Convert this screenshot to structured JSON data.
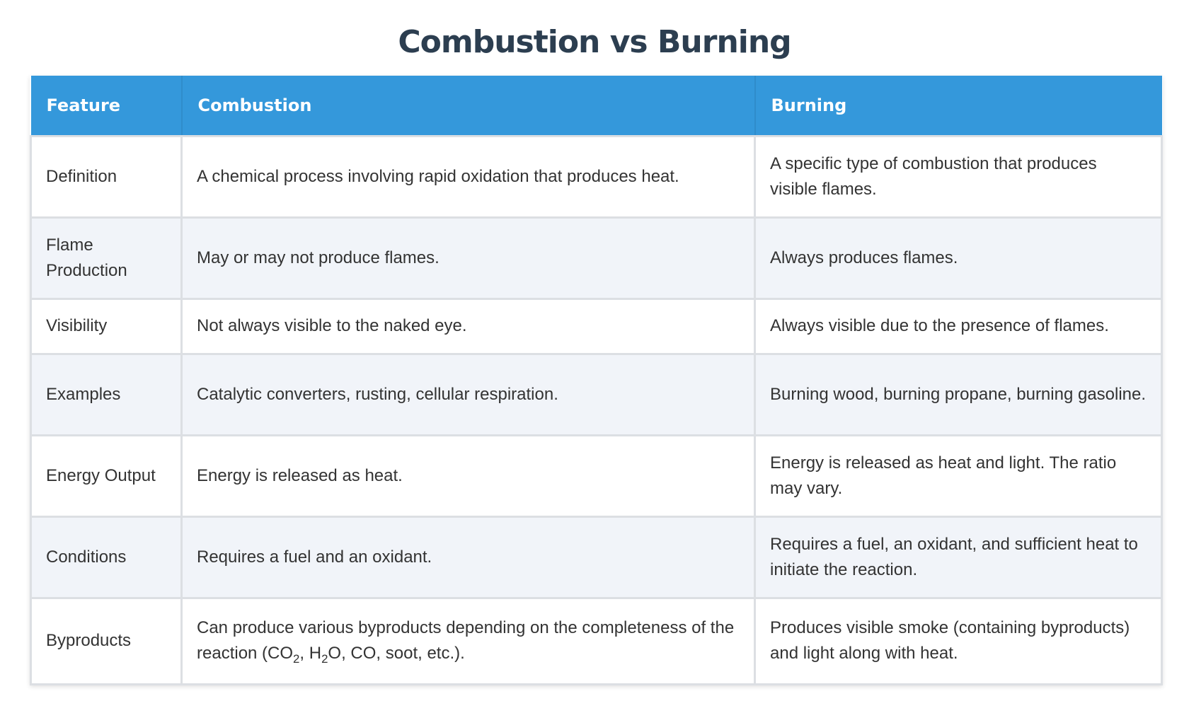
{
  "title": "Combustion vs Burning",
  "headers": {
    "feature": "Feature",
    "combustion": "Combustion",
    "burning": "Burning"
  },
  "rows": [
    {
      "feature": "Definition",
      "combustion": "A chemical process involving rapid oxidation that produces heat.",
      "burning": "A specific type of combustion that produces visible flames."
    },
    {
      "feature": "Flame Production",
      "combustion": "May or may not produce flames.",
      "burning": "Always produces flames."
    },
    {
      "feature": "Visibility",
      "combustion": "Not always visible to the naked eye.",
      "burning": "Always visible due to the presence of flames."
    },
    {
      "feature": "Examples",
      "combustion": "Catalytic converters, rusting, cellular respiration.",
      "burning": "Burning wood, burning propane, burning gasoline."
    },
    {
      "feature": "Energy Output",
      "combustion": "Energy is released as heat.",
      "burning": "Energy is released as heat and light. The ratio may vary."
    },
    {
      "feature": "Conditions",
      "combustion": "Requires a fuel and an oxidant.",
      "burning": "Requires a fuel, an oxidant, and sufficient heat to initiate the reaction."
    },
    {
      "feature": "Byproducts",
      "combustion_parts": {
        "before": "Can produce various byproducts depending on the completeness of the reaction (CO",
        "sub1": "2",
        "mid1": ", H",
        "sub2": "2",
        "after": "O, CO, soot, etc.)."
      },
      "burning": "Produces visible smoke (containing byproducts) and light along with heat."
    }
  ],
  "colors": {
    "title": "#2c3e50",
    "header_bg": "#3498db",
    "header_text": "#ffffff",
    "row_alt_bg": "#f1f4f9",
    "border": "#dcdfe3",
    "cell_text": "#333333"
  }
}
